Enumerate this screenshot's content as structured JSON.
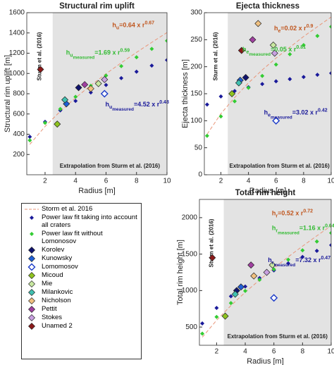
{
  "chart_data": {
    "legend": [
      {
        "name": "Storm et al. 2016",
        "color": "#e9967a",
        "style": "dashed"
      },
      {
        "name": "Power law fit taking into account all craters",
        "color": "#1a1a9a",
        "style": "dotted"
      },
      {
        "name": "Power law fit without Lomonosov",
        "color": "#33cc33",
        "style": "dotted"
      },
      {
        "name": "Korolev",
        "color": "#10136e",
        "style": "marker"
      },
      {
        "name": "Kunowsky",
        "color": "#1f5fd6",
        "style": "marker"
      },
      {
        "name": "Lomomosov",
        "color": "#1a3ac8",
        "style": "marker",
        "filled": false
      },
      {
        "name": "Micoud",
        "color": "#8fc31f",
        "style": "marker"
      },
      {
        "name": "Mie",
        "color": "#c8e8a0",
        "style": "marker"
      },
      {
        "name": "Milankovic",
        "color": "#40c0b0",
        "style": "marker"
      },
      {
        "name": "Nicholson",
        "color": "#f0c080",
        "style": "marker"
      },
      {
        "name": "Pettit",
        "color": "#a040a0",
        "style": "marker"
      },
      {
        "name": "Stokes",
        "color": "#c8a0e0",
        "style": "marker"
      },
      {
        "name": "Unamed 2",
        "color": "#8b1a1a",
        "style": "marker"
      }
    ],
    "charts": [
      {
        "type": "line",
        "title": "Structural rim uplift",
        "x_label": "Radius [m]",
        "y_label": "Structural rim uplift [m]",
        "xlim": [
          0.8,
          10
        ],
        "xticks": [
          2,
          4,
          6,
          8,
          10
        ],
        "ylim": [
          0,
          1600
        ],
        "yticks": [
          200,
          400,
          600,
          800,
          1000,
          1200,
          1400,
          1600
        ],
        "shade_from": 2.5,
        "region_label": "Sturm et al. (2016)",
        "shade_label": "Extrapolation from Sturm et al. (2016)",
        "annotations": [
          {
            "base": "h",
            "sub": "u",
            "eq": "=0.64 x r",
            "sup": "0.67",
            "color": "#c0561e"
          },
          {
            "base": "h",
            "sub": "u",
            "sub2": "measured",
            "eq": "=1.69 x r",
            "sup": "0.59",
            "color": "#33bb33"
          },
          {
            "base": "h",
            "sub": "u",
            "sub2": "measured",
            "eq": "=4.52 x r",
            "sup": "0.48",
            "color": "#1a1a9a"
          }
        ],
        "series": [
          {
            "x": [
              1,
              2,
              3,
              4,
              5,
              6,
              7,
              8,
              9,
              10
            ],
            "values": [
              300,
              477,
              626,
              760,
              882,
              997,
              1105,
              1208,
              1307,
              1404
            ]
          },
          {
            "x": [
              1,
              2,
              3,
              4,
              5,
              6,
              7,
              8,
              9,
              10
            ],
            "values": [
              375,
              523,
              636,
              729,
              812,
              886,
              954,
              1017,
              1077,
              1132
            ]
          },
          {
            "x": [
              1,
              2,
              3,
              4,
              5,
              6,
              7,
              8,
              9,
              10
            ],
            "values": [
              340,
              512,
              650,
              770,
              878,
              979,
              1072,
              1160,
              1243,
              1323
            ]
          },
          {
            "x": [
              4.2
            ],
            "values": [
              860
            ]
          },
          {
            "x": [
              3.4
            ],
            "values": [
              700
            ]
          },
          {
            "x": [
              5.9
            ],
            "values": [
              800
            ]
          },
          {
            "x": [
              2.8
            ],
            "values": [
              500
            ]
          },
          {
            "x": [
              5.5
            ],
            "values": [
              900
            ]
          },
          {
            "x": [
              3.3
            ],
            "values": [
              740
            ]
          },
          {
            "x": [
              5.0
            ],
            "values": [
              850
            ]
          },
          {
            "x": [
              4.6
            ],
            "values": [
              890
            ]
          },
          {
            "x": [
              5.9
            ],
            "values": [
              940
            ]
          },
          {
            "x": [
              1.7
            ],
            "values": [
              1040
            ]
          }
        ]
      },
      {
        "type": "line",
        "title": "Ejecta thickness",
        "x_label": "Radius [m]",
        "y_label": "Ejecta thickness [m]",
        "xlim": [
          0.8,
          10
        ],
        "xticks": [
          2,
          4,
          6,
          8,
          10
        ],
        "ylim": [
          0,
          300
        ],
        "yticks": [
          0,
          50,
          100,
          150,
          200,
          250,
          300
        ],
        "shade_from": 2.5,
        "region_label": "Sturm et al. (2016)",
        "shade_label": "Extrapolation from Sturm et al. (2016)",
        "annotations": [
          {
            "base": "h",
            "sub": "e",
            "eq": "=0.02 x r",
            "sup": "0.9",
            "color": "#c0561e"
          },
          {
            "base": "h",
            "sub": "e",
            "sub2": "measured",
            "eq": "=0.05 x r",
            "sup": "0.81",
            "color": "#33bb33"
          },
          {
            "base": "h",
            "sub": "e",
            "sub2": "measured",
            "eq": "=3.02 x r",
            "sup": "0.42",
            "color": "#1a1a9a"
          }
        ],
        "series": [
          {
            "x": [
              1,
              2,
              3,
              4,
              5,
              6,
              7,
              8,
              9,
              10
            ],
            "values": [
              75,
              113,
              143,
              170,
              194,
              216,
              236,
              256,
              274,
              292
            ]
          },
          {
            "x": [
              1,
              2,
              3,
              4,
              5,
              6,
              7,
              8,
              9,
              10
            ],
            "values": [
              130,
              145,
              155,
              162,
              168,
              173,
              177,
              181,
              185,
              188
            ]
          },
          {
            "x": [
              1,
              2,
              3,
              4,
              5,
              6,
              7,
              8,
              9,
              10
            ],
            "values": [
              72,
              108,
              136,
              161,
              183,
              204,
              223,
              240,
              257,
              274
            ]
          },
          {
            "x": [
              3.8
            ],
            "values": [
              180
            ]
          },
          {
            "x": [
              3.4
            ],
            "values": [
              175
            ]
          },
          {
            "x": [
              6.0
            ],
            "values": [
              100
            ]
          },
          {
            "x": [
              2.8
            ],
            "values": [
              150
            ]
          },
          {
            "x": [
              5.8
            ],
            "values": [
              240
            ]
          },
          {
            "x": [
              3.3
            ],
            "values": [
              170
            ]
          },
          {
            "x": [
              4.7
            ],
            "values": [
              280
            ]
          },
          {
            "x": [
              4.3
            ],
            "values": [
              250
            ]
          },
          {
            "x": [
              5.9
            ],
            "values": [
              225
            ]
          },
          {
            "x": [
              3.5
            ],
            "values": [
              230
            ]
          }
        ]
      },
      {
        "type": "line",
        "title": "Total rim height",
        "x_label": "Radius [m]",
        "y_label": "Total rim height [m]",
        "xlim": [
          0.8,
          10
        ],
        "xticks": [
          2,
          4,
          6,
          8,
          10
        ],
        "ylim": [
          250,
          2250
        ],
        "yticks": [
          500,
          1000,
          1500,
          2000
        ],
        "shade_from": 2.5,
        "region_label": "Sturm et al. (2016)",
        "shade_label": "Extrapolation from Sturm et al. (2016)",
        "annotations": [
          {
            "base": "h",
            "sub": "r",
            "eq": "=0.52 x r",
            "sup": "0.72",
            "color": "#c0561e"
          },
          {
            "base": "h",
            "sub": "r",
            "sub2": "measured",
            "eq": "=1.16 x r",
            "sup": "0.64",
            "color": "#33bb33"
          },
          {
            "base": "h",
            "sub": "r",
            "sub2": "measured",
            "eq": "=7.32 x r",
            "sup": "0.47",
            "color": "#1a1a9a"
          }
        ],
        "series": [
          {
            "x": [
              1,
              2,
              3,
              4,
              5,
              6,
              7,
              8,
              9,
              10
            ],
            "values": [
              360,
              593,
              794,
              977,
              1146,
              1308,
              1462,
              1609,
              1751,
              1889
            ]
          },
          {
            "x": [
              1,
              2,
              3,
              4,
              5,
              6,
              7,
              8,
              9,
              10
            ],
            "values": [
              550,
              762,
              922,
              1055,
              1172,
              1277,
              1373,
              1461,
              1545,
              1623
            ]
          },
          {
            "x": [
              1,
              2,
              3,
              4,
              5,
              6,
              7,
              8,
              9,
              10
            ],
            "values": [
              410,
              639,
              828,
              995,
              1148,
              1291,
              1424,
              1552,
              1673,
              1790
            ]
          },
          {
            "x": [
              3.4
            ],
            "values": [
              1000
            ]
          },
          {
            "x": [
              3.7
            ],
            "values": [
              1050
            ]
          },
          {
            "x": [
              6.0
            ],
            "values": [
              900
            ]
          },
          {
            "x": [
              2.6
            ],
            "values": [
              650
            ]
          },
          {
            "x": [
              5.9
            ],
            "values": [
              1350
            ]
          },
          {
            "x": [
              3.3
            ],
            "values": [
              950
            ]
          },
          {
            "x": [
              4.6
            ],
            "values": [
              1200
            ]
          },
          {
            "x": [
              4.4
            ],
            "values": [
              1350
            ]
          },
          {
            "x": [
              5.5
            ],
            "values": [
              1250
            ]
          },
          {
            "x": [
              1.7
            ],
            "values": [
              1450
            ]
          }
        ]
      }
    ]
  }
}
